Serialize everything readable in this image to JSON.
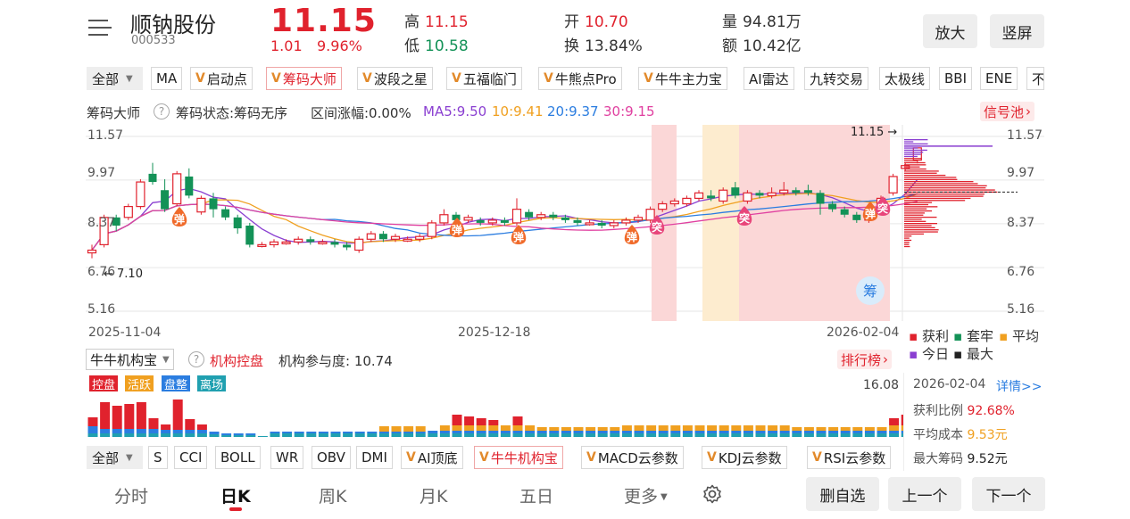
{
  "header": {
    "name": "顺钠股份",
    "code": "000533",
    "price": "11.15",
    "change": "1.01",
    "change_pct": "9.96%",
    "high_label": "高",
    "high": "11.15",
    "low_label": "低",
    "low": "10.58",
    "open_label": "开",
    "open": "10.70",
    "turnover_label": "换",
    "turnover": "13.84%",
    "volume_label": "量",
    "volume": "94.81万",
    "amount_label": "额",
    "amount": "10.42亿",
    "zoom_btn": "放大",
    "portrait_btn": "竖屏"
  },
  "top_tabs": {
    "all": "全部",
    "items": [
      "MA",
      "启动点",
      "筹码大师",
      "波段之星",
      "五福临门",
      "牛熊点Pro",
      "牛牛主力宝",
      "AI雷达",
      "九转交易",
      "太极线",
      "BBI",
      "ENE",
      "不"
    ]
  },
  "main_info": {
    "indicator": "筹码大师",
    "state": "筹码状态:筹码无序",
    "range": "区间涨幅:0.00%",
    "ma5": "MA5:9.50",
    "ma10": "10:9.41",
    "ma20": "20:9.37",
    "ma30": "30:9.15",
    "signal_pool": "信号池"
  },
  "price_axis": {
    "left": [
      "11.57",
      "9.97",
      "8.37",
      "6.76",
      "5.16"
    ],
    "right": [
      "11.57",
      "9.97",
      "8.37",
      "6.76",
      "5.16"
    ],
    "last_price_marker": "11.15",
    "low_marker": "7.10"
  },
  "date_axis": [
    "2025-11-04",
    "2025-12-18",
    "2026-02-04"
  ],
  "markers": {
    "bounce": "弹",
    "breakout": "突",
    "chip": "筹"
  },
  "chip_legend": {
    "profit": "获利",
    "trapped": "套牢",
    "average": "平均",
    "today": "今日",
    "max": "最大"
  },
  "sub_info": {
    "indicator": "牛牛机构宝",
    "name": "机构控盘",
    "participation": "机构参与度: 10.74",
    "ranking": "排行榜",
    "badges": [
      "控盘",
      "活跃",
      "盘整",
      "离场"
    ],
    "badge_colors": [
      "#e0222d",
      "#f0a020",
      "#2b7de0",
      "#20a0b0"
    ],
    "axis_max": "16.08"
  },
  "chip_panel": {
    "date": "2026-02-04",
    "details": "详情>>",
    "profit_ratio_label": "获利比例",
    "profit_ratio": "92.68%",
    "avg_cost_label": "平均成本",
    "avg_cost": "9.53元",
    "max_chip_label": "最大筹码",
    "max_chip": "9.52元"
  },
  "bottom_tabs": {
    "all": "全部",
    "items": [
      "S",
      "CCI",
      "BOLL",
      "WR",
      "OBV",
      "DMI",
      "AI顶底",
      "牛牛机构宝",
      "MACD云参数",
      "KDJ云参数",
      "RSI云参数"
    ]
  },
  "period_tabs": [
    "分时",
    "日K",
    "周K",
    "月K",
    "五日",
    "更多"
  ],
  "actions": {
    "remove_watch": "删自选",
    "prev": "上一个",
    "next": "下一个"
  },
  "colors": {
    "up": "#e0222d",
    "down": "#139257",
    "ma5": "#8a3fd1",
    "ma10": "#f0a020",
    "ma20": "#2b7de0",
    "ma30": "#e040a0"
  }
}
